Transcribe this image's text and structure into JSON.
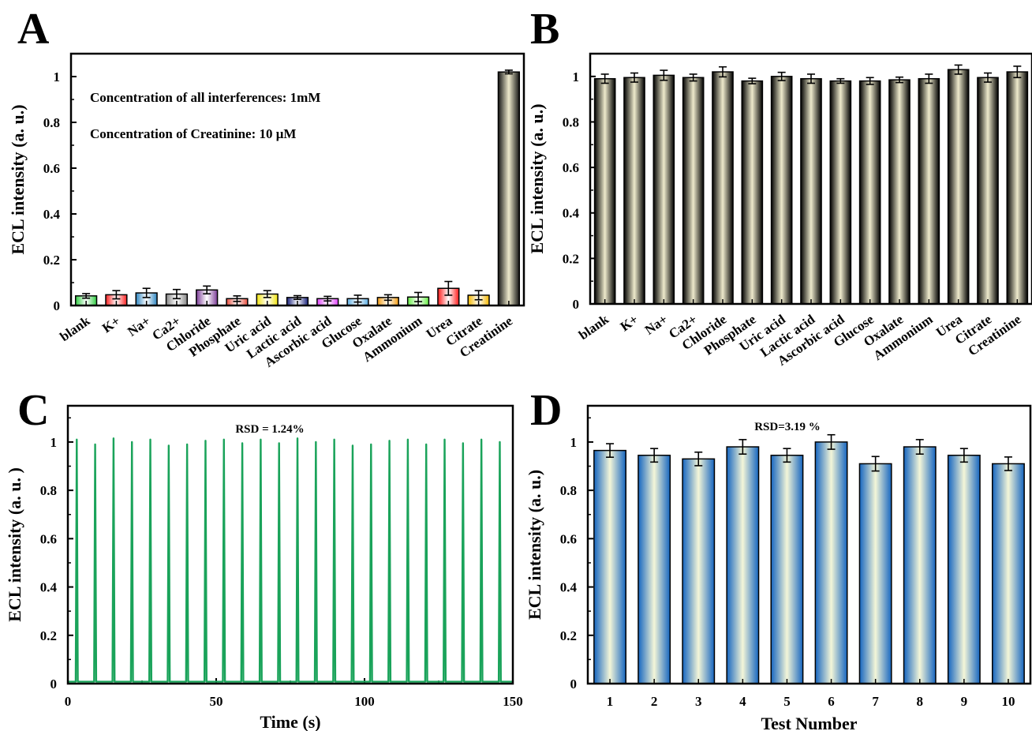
{
  "panels": {
    "A": {
      "letter": "A"
    },
    "B": {
      "letter": "B"
    },
    "C": {
      "letter": "C"
    },
    "D": {
      "letter": "D"
    }
  },
  "chart_data": [
    {
      "id": "A",
      "type": "bar",
      "ylabel": "ECL intensity (a. u.)",
      "xlabel": "",
      "ylim": [
        0,
        1.1
      ],
      "yticks": [
        "0",
        "0.2",
        "0.4",
        "0.6",
        "0.8",
        "1"
      ],
      "categories": [
        "blank",
        "K+",
        "Na+",
        "Ca2+",
        "Chloride",
        "Phosphate",
        "Uric acid",
        "Lactic acid",
        "Ascorbic acid",
        "Glucose",
        "Oxalate",
        "Ammonium",
        "Urea",
        "Citrate",
        "Creatinine"
      ],
      "values": [
        0.042,
        0.047,
        0.055,
        0.05,
        0.068,
        0.03,
        0.05,
        0.035,
        0.03,
        0.03,
        0.035,
        0.037,
        0.075,
        0.045,
        1.02
      ],
      "errors": [
        0.01,
        0.018,
        0.02,
        0.02,
        0.017,
        0.012,
        0.015,
        0.008,
        0.01,
        0.015,
        0.012,
        0.02,
        0.03,
        0.02,
        0.008
      ],
      "bar_colors": [
        "#2ecc40",
        "#ff2020",
        "#2e86c1",
        "#888888",
        "#7d3c98",
        "#e74c3c",
        "#f1e40f",
        "#1a237e",
        "#e040fb",
        "#5dade2",
        "#f39c12",
        "#66ee44",
        "#ff1a1a",
        "#f5b800",
        "#151515"
      ],
      "annotations": [
        "Concentration of all interferences: 1mM",
        "Concentration of Creatinine: 10 μM"
      ]
    },
    {
      "id": "B",
      "type": "bar",
      "ylabel": "ECL intensity (a. u.)",
      "xlabel": "",
      "ylim": [
        0,
        1.1
      ],
      "yticks": [
        "0",
        "0.2",
        "0.4",
        "0.6",
        "0.8",
        "1"
      ],
      "categories": [
        "blank",
        "K+",
        "Na+",
        "Ca2+",
        "Chloride",
        "Phosphate",
        "Uric acid",
        "Lactic acid",
        "Ascorbic acid",
        "Glucose",
        "Oxalate",
        "Ammonium",
        "Urea",
        "Citrate",
        "Creatinine"
      ],
      "values": [
        0.99,
        0.995,
        1.005,
        0.995,
        1.02,
        0.98,
        1.0,
        0.99,
        0.98,
        0.98,
        0.985,
        0.99,
        1.03,
        0.995,
        1.02
      ],
      "errors": [
        0.02,
        0.02,
        0.022,
        0.015,
        0.022,
        0.012,
        0.018,
        0.02,
        0.01,
        0.015,
        0.012,
        0.02,
        0.02,
        0.02,
        0.025
      ],
      "bar_color": "#111111"
    },
    {
      "id": "C",
      "type": "line",
      "ylabel": "ECL intensity (a. u. )",
      "xlabel": "Time (s)",
      "xlim": [
        0,
        150
      ],
      "ylim": [
        0,
        1.15
      ],
      "xticks": [
        "0",
        "50",
        "100",
        "150"
      ],
      "yticks": [
        "0",
        "0.2",
        "0.4",
        "0.6",
        "0.8",
        "1"
      ],
      "line_color": "#1aa35a",
      "baseline": 0.008,
      "peaks": [
        {
          "x": 3,
          "y": 1.01
        },
        {
          "x": 9.2,
          "y": 0.99
        },
        {
          "x": 15.4,
          "y": 1.015
        },
        {
          "x": 21.6,
          "y": 1.0
        },
        {
          "x": 27.8,
          "y": 1.01
        },
        {
          "x": 34,
          "y": 0.985
        },
        {
          "x": 40.2,
          "y": 0.99
        },
        {
          "x": 46.4,
          "y": 1.005
        },
        {
          "x": 52.6,
          "y": 1.01
        },
        {
          "x": 58.8,
          "y": 0.995
        },
        {
          "x": 65,
          "y": 1.01
        },
        {
          "x": 71.2,
          "y": 0.995
        },
        {
          "x": 77.4,
          "y": 1.015
        },
        {
          "x": 83.6,
          "y": 1.0
        },
        {
          "x": 89.8,
          "y": 1.01
        },
        {
          "x": 96,
          "y": 0.985
        },
        {
          "x": 102.2,
          "y": 0.99
        },
        {
          "x": 108.4,
          "y": 1.005
        },
        {
          "x": 114.6,
          "y": 1.01
        },
        {
          "x": 120.8,
          "y": 0.99
        },
        {
          "x": 127,
          "y": 1.01
        },
        {
          "x": 133.2,
          "y": 0.995
        },
        {
          "x": 139.4,
          "y": 1.01
        },
        {
          "x": 145.6,
          "y": 1.0
        }
      ],
      "annotation": "RSD = 1.24%"
    },
    {
      "id": "D",
      "type": "bar",
      "ylabel": "ECL intensity (a. u.)",
      "xlabel": "Test Number",
      "ylim": [
        0,
        1.15
      ],
      "yticks": [
        "0",
        "0.2",
        "0.4",
        "0.6",
        "0.8",
        "1"
      ],
      "categories": [
        "1",
        "2",
        "3",
        "4",
        "5",
        "6",
        "7",
        "8",
        "9",
        "10"
      ],
      "values": [
        0.965,
        0.945,
        0.93,
        0.98,
        0.945,
        1.0,
        0.91,
        0.98,
        0.945,
        0.91
      ],
      "errors": [
        0.028,
        0.028,
        0.028,
        0.03,
        0.028,
        0.03,
        0.03,
        0.03,
        0.028,
        0.028
      ],
      "bar_color": "#1565c0",
      "annotation": "RSD=3.19 %"
    }
  ]
}
